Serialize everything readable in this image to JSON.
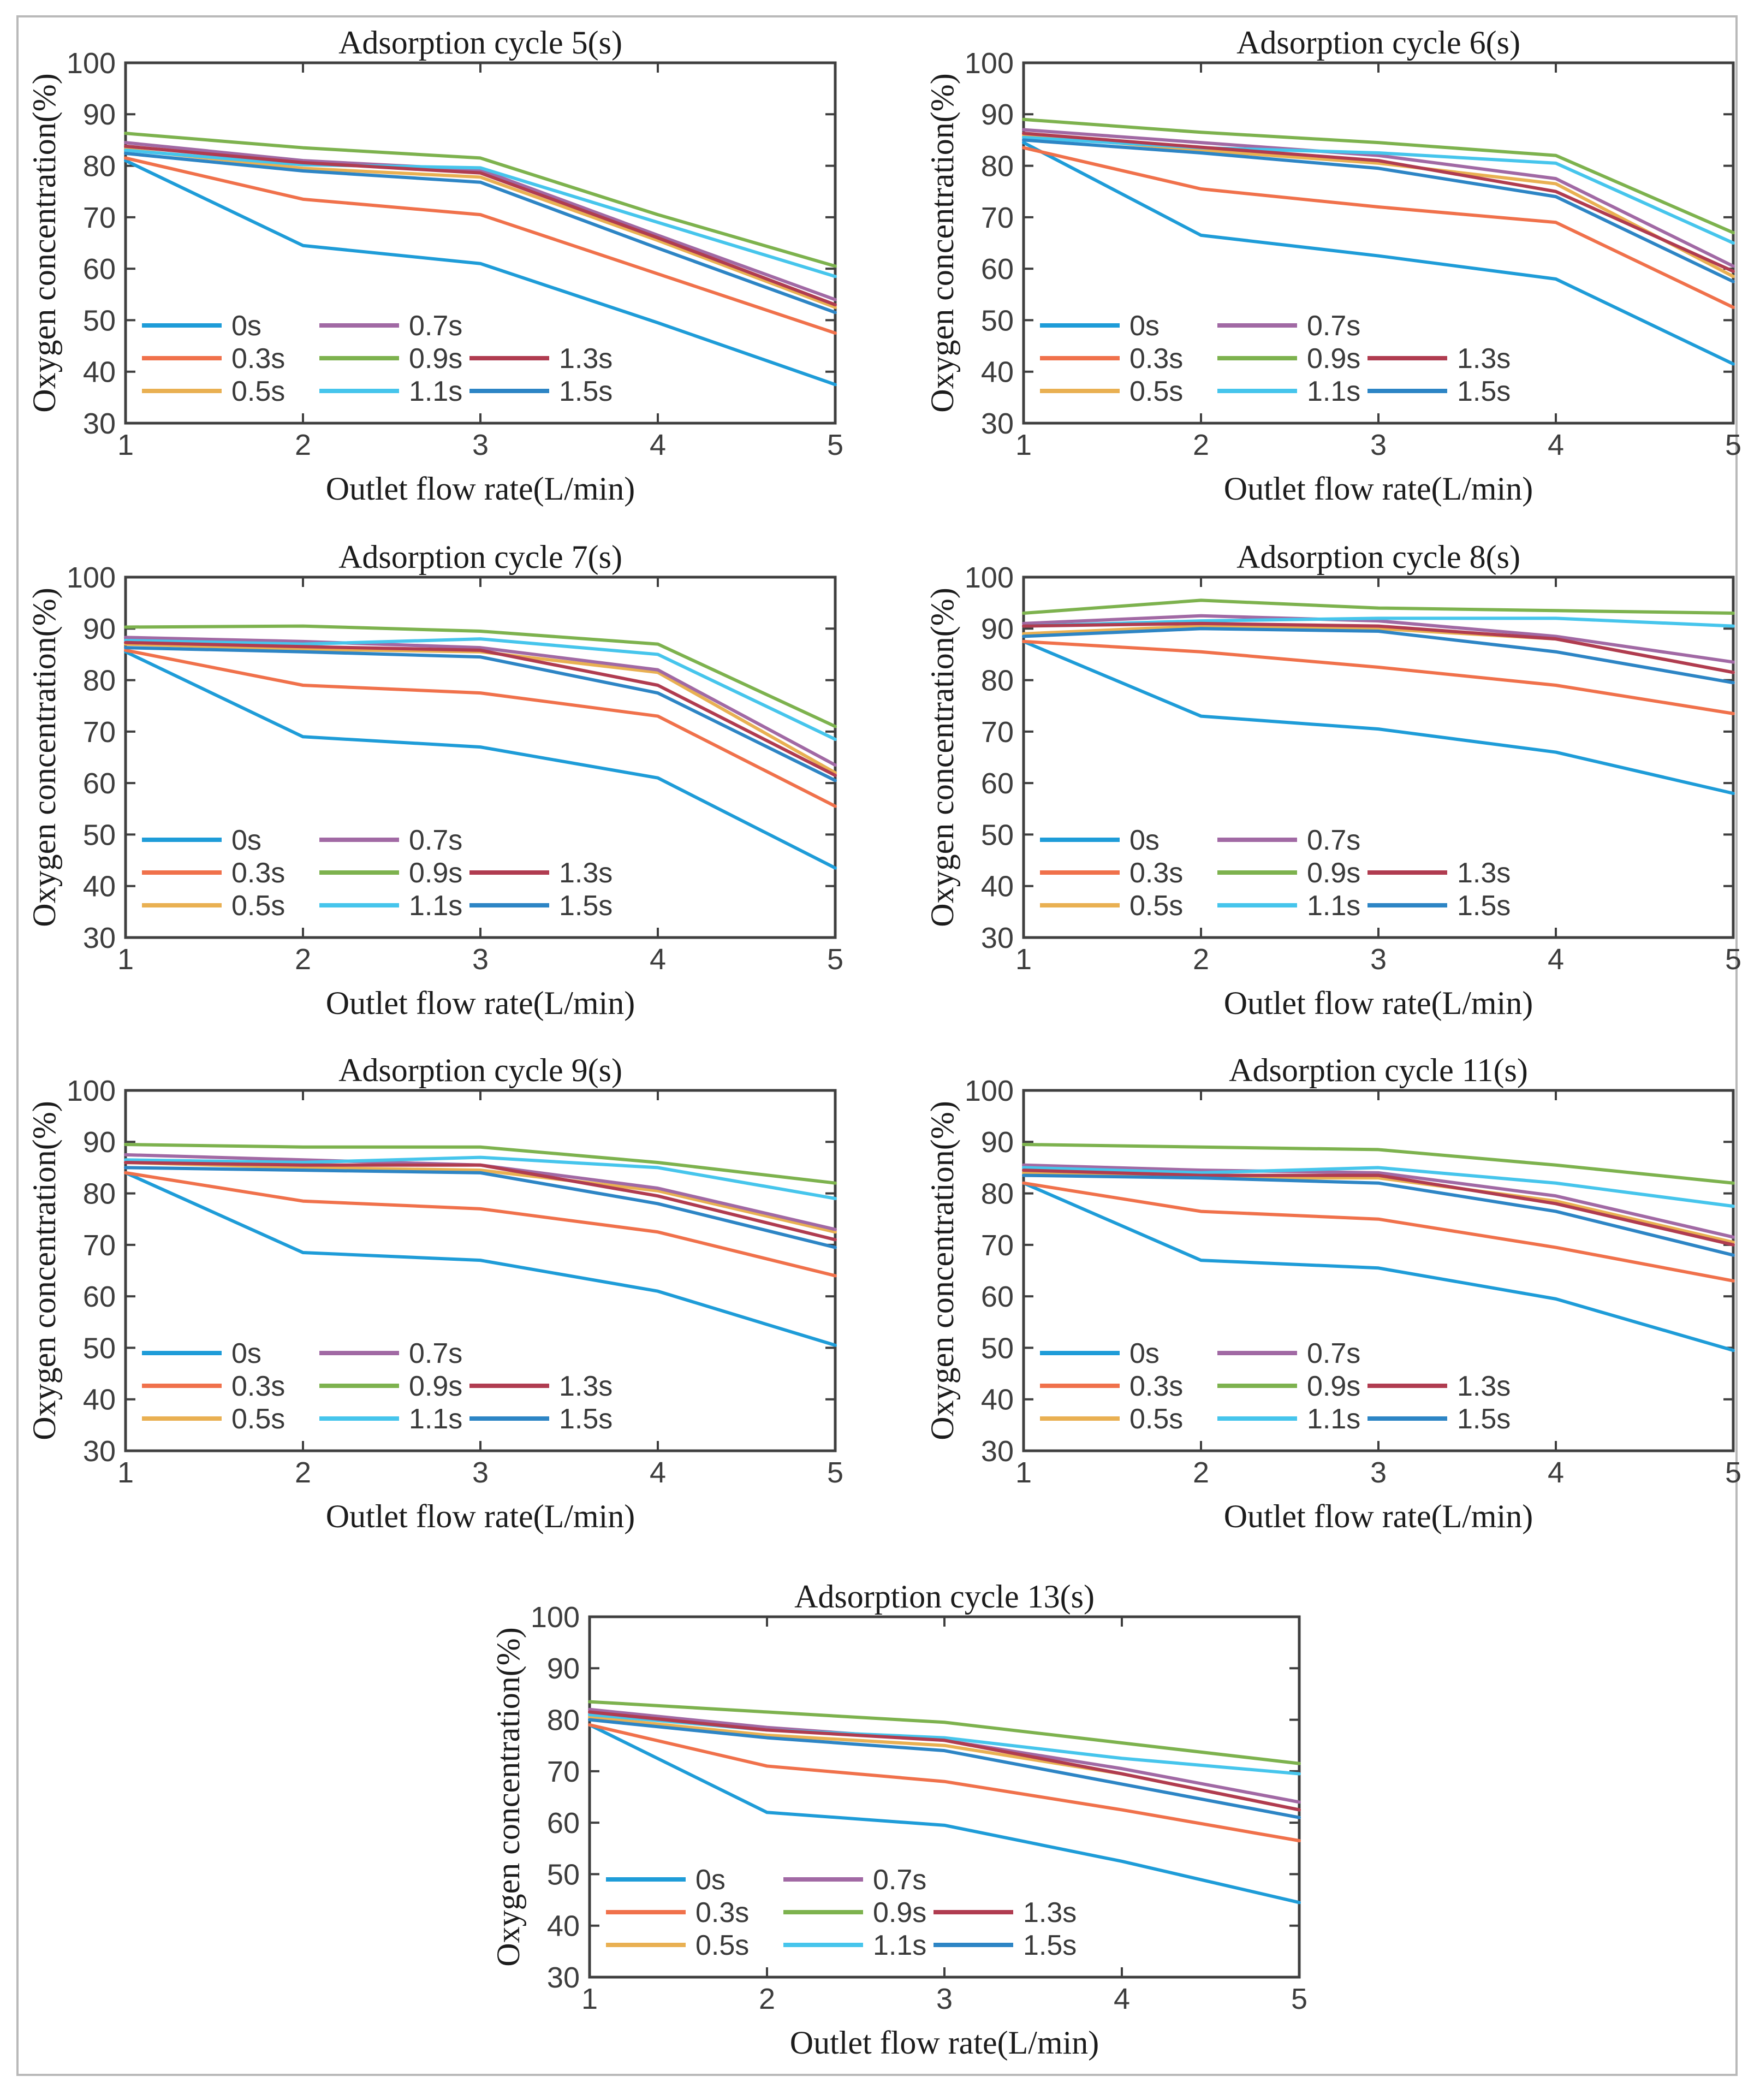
{
  "page": {
    "background": "#ffffff",
    "border_color": "#b9b9b9"
  },
  "axes": {
    "xlabel": "Outlet flow rate(L/min)",
    "ylabel": "Oxygen concentration(%)",
    "xticks": [
      1,
      2,
      3,
      4,
      5
    ],
    "yticks": [
      30,
      40,
      50,
      60,
      70,
      80,
      90,
      100
    ],
    "xlim": [
      1,
      5
    ],
    "ylim": [
      30,
      100
    ],
    "grid": false,
    "box": true,
    "axis_color": "#3f3f3f"
  },
  "palette": {
    "0s": "#1e9cd8",
    "0.3s": "#f0714b",
    "0.5s": "#e9b052",
    "0.7s": "#a169a4",
    "0.9s": "#7db24e",
    "1.1s": "#46c5ec",
    "1.3s": "#b03c50",
    "1.5s": "#2d85c5"
  },
  "legend": {
    "position": "lower-left",
    "labels": [
      "0s",
      "0.3s",
      "0.5s",
      "0.7s",
      "0.9s",
      "1.1s",
      "1.3s",
      "1.5s"
    ],
    "grid_rows": [
      [
        0,
        3
      ],
      [
        1,
        4,
        6
      ],
      [
        2,
        5,
        7
      ]
    ]
  },
  "chart_data": [
    {
      "type": "line",
      "title": "Adsorption cycle 5(s)",
      "x": [
        1,
        2,
        3,
        4,
        5
      ],
      "series": [
        {
          "name": "0s",
          "values": [
            81.0,
            64.5,
            61.0,
            49.5,
            37.5
          ]
        },
        {
          "name": "0.3s",
          "values": [
            81.5,
            73.5,
            70.5,
            59.0,
            47.5
          ]
        },
        {
          "name": "0.5s",
          "values": [
            83.2,
            79.5,
            77.8,
            65.5,
            52.5
          ]
        },
        {
          "name": "0.7s",
          "values": [
            84.5,
            81.0,
            79.2,
            66.5,
            54.0
          ]
        },
        {
          "name": "0.9s",
          "values": [
            86.3,
            83.5,
            81.5,
            70.5,
            60.5
          ]
        },
        {
          "name": "1.1s",
          "values": [
            83.0,
            80.2,
            79.6,
            69.0,
            58.5
          ]
        },
        {
          "name": "1.3s",
          "values": [
            83.8,
            80.6,
            78.6,
            66.0,
            53.0
          ]
        },
        {
          "name": "1.5s",
          "values": [
            82.4,
            79.0,
            76.8,
            64.0,
            51.5
          ]
        }
      ]
    },
    {
      "type": "line",
      "title": "Adsorption cycle 6(s)",
      "x": [
        1,
        2,
        3,
        4,
        5
      ],
      "series": [
        {
          "name": "0s",
          "values": [
            84.5,
            66.5,
            62.5,
            58.0,
            41.5
          ]
        },
        {
          "name": "0.3s",
          "values": [
            83.5,
            75.5,
            72.0,
            69.0,
            52.5
          ]
        },
        {
          "name": "0.5s",
          "values": [
            86.0,
            83.0,
            80.5,
            76.5,
            58.5
          ]
        },
        {
          "name": "0.7s",
          "values": [
            87.0,
            84.5,
            82.0,
            77.5,
            60.5
          ]
        },
        {
          "name": "0.9s",
          "values": [
            89.0,
            86.5,
            84.5,
            82.0,
            67.0
          ]
        },
        {
          "name": "1.1s",
          "values": [
            85.5,
            83.5,
            82.5,
            80.5,
            65.0
          ]
        },
        {
          "name": "1.3s",
          "values": [
            86.3,
            83.6,
            81.0,
            75.0,
            59.5
          ]
        },
        {
          "name": "1.5s",
          "values": [
            85.0,
            82.5,
            79.5,
            74.0,
            57.5
          ]
        }
      ]
    },
    {
      "type": "line",
      "title": "Adsorption cycle 7(s)",
      "x": [
        1,
        2,
        3,
        4,
        5
      ],
      "series": [
        {
          "name": "0s",
          "values": [
            85.5,
            69.0,
            67.0,
            61.0,
            43.5
          ]
        },
        {
          "name": "0.3s",
          "values": [
            85.8,
            79.0,
            77.5,
            73.0,
            55.5
          ]
        },
        {
          "name": "0.5s",
          "values": [
            87.0,
            86.0,
            85.5,
            81.5,
            62.0
          ]
        },
        {
          "name": "0.7s",
          "values": [
            88.3,
            87.5,
            86.3,
            82.0,
            63.5
          ]
        },
        {
          "name": "0.9s",
          "values": [
            90.3,
            90.5,
            89.5,
            87.0,
            71.0
          ]
        },
        {
          "name": "1.1s",
          "values": [
            87.7,
            87.0,
            88.0,
            85.0,
            68.5
          ]
        },
        {
          "name": "1.3s",
          "values": [
            87.3,
            86.5,
            85.8,
            79.0,
            61.5
          ]
        },
        {
          "name": "1.5s",
          "values": [
            86.3,
            85.5,
            84.5,
            77.5,
            60.5
          ]
        }
      ]
    },
    {
      "type": "line",
      "title": "Adsorption cycle 8(s)",
      "x": [
        1,
        2,
        3,
        4,
        5
      ],
      "series": [
        {
          "name": "0s",
          "values": [
            87.5,
            73.0,
            70.5,
            66.0,
            58.0
          ]
        },
        {
          "name": "0.3s",
          "values": [
            87.5,
            85.5,
            82.5,
            79.0,
            73.5
          ]
        },
        {
          "name": "0.5s",
          "values": [
            89.0,
            90.5,
            90.0,
            88.0,
            81.5
          ]
        },
        {
          "name": "0.7s",
          "values": [
            91.0,
            92.5,
            91.5,
            88.5,
            83.5
          ]
        },
        {
          "name": "0.9s",
          "values": [
            93.0,
            95.5,
            94.0,
            93.5,
            93.0
          ]
        },
        {
          "name": "1.1s",
          "values": [
            90.5,
            91.5,
            92.0,
            92.0,
            90.5
          ]
        },
        {
          "name": "1.3s",
          "values": [
            90.5,
            91.0,
            90.5,
            88.0,
            81.5
          ]
        },
        {
          "name": "1.5s",
          "values": [
            88.5,
            90.0,
            89.5,
            85.5,
            79.5
          ]
        }
      ]
    },
    {
      "type": "line",
      "title": "Adsorption cycle 9(s)",
      "x": [
        1,
        2,
        3,
        4,
        5
      ],
      "series": [
        {
          "name": "0s",
          "values": [
            84.0,
            68.5,
            67.0,
            61.0,
            50.5
          ]
        },
        {
          "name": "0.3s",
          "values": [
            84.0,
            78.5,
            77.0,
            72.5,
            64.0
          ]
        },
        {
          "name": "0.5s",
          "values": [
            86.0,
            85.0,
            84.5,
            80.5,
            72.5
          ]
        },
        {
          "name": "0.7s",
          "values": [
            87.5,
            86.5,
            85.5,
            81.0,
            73.0
          ]
        },
        {
          "name": "0.9s",
          "values": [
            89.5,
            89.0,
            89.0,
            86.0,
            82.0
          ]
        },
        {
          "name": "1.1s",
          "values": [
            86.5,
            86.0,
            87.0,
            85.0,
            79.0
          ]
        },
        {
          "name": "1.3s",
          "values": [
            86.0,
            85.5,
            85.5,
            79.5,
            71.0
          ]
        },
        {
          "name": "1.5s",
          "values": [
            85.0,
            84.5,
            84.0,
            78.0,
            69.5
          ]
        }
      ]
    },
    {
      "type": "line",
      "title": "Adsorption cycle 11(s)",
      "x": [
        1,
        2,
        3,
        4,
        5
      ],
      "series": [
        {
          "name": "0s",
          "values": [
            82.0,
            67.0,
            65.5,
            59.5,
            49.5
          ]
        },
        {
          "name": "0.3s",
          "values": [
            82.0,
            76.5,
            75.0,
            69.5,
            63.0
          ]
        },
        {
          "name": "0.5s",
          "values": [
            84.0,
            83.0,
            83.0,
            78.5,
            70.5
          ]
        },
        {
          "name": "0.7s",
          "values": [
            85.5,
            84.5,
            84.0,
            79.5,
            71.5
          ]
        },
        {
          "name": "0.9s",
          "values": [
            89.5,
            89.0,
            88.5,
            85.5,
            82.0
          ]
        },
        {
          "name": "1.1s",
          "values": [
            85.0,
            84.0,
            85.0,
            82.0,
            77.5
          ]
        },
        {
          "name": "1.3s",
          "values": [
            84.5,
            83.5,
            83.5,
            78.0,
            70.0
          ]
        },
        {
          "name": "1.5s",
          "values": [
            83.5,
            83.0,
            82.0,
            76.5,
            68.0
          ]
        }
      ]
    },
    {
      "type": "line",
      "title": "Adsorption cycle 13(s)",
      "x": [
        1,
        2,
        3,
        4,
        5
      ],
      "series": [
        {
          "name": "0s",
          "values": [
            79.0,
            62.0,
            59.5,
            52.5,
            44.5
          ]
        },
        {
          "name": "0.3s",
          "values": [
            79.0,
            71.0,
            68.0,
            62.5,
            56.5
          ]
        },
        {
          "name": "0.5s",
          "values": [
            80.5,
            77.0,
            75.0,
            69.5,
            62.5
          ]
        },
        {
          "name": "0.7s",
          "values": [
            82.0,
            78.5,
            76.0,
            70.5,
            64.0
          ]
        },
        {
          "name": "0.9s",
          "values": [
            83.5,
            81.5,
            79.5,
            75.5,
            71.5
          ]
        },
        {
          "name": "1.1s",
          "values": [
            81.0,
            78.0,
            76.5,
            72.5,
            69.5
          ]
        },
        {
          "name": "1.3s",
          "values": [
            81.5,
            78.0,
            76.0,
            69.5,
            62.5
          ]
        },
        {
          "name": "1.5s",
          "values": [
            80.0,
            76.5,
            74.0,
            67.5,
            61.0
          ]
        }
      ]
    }
  ]
}
